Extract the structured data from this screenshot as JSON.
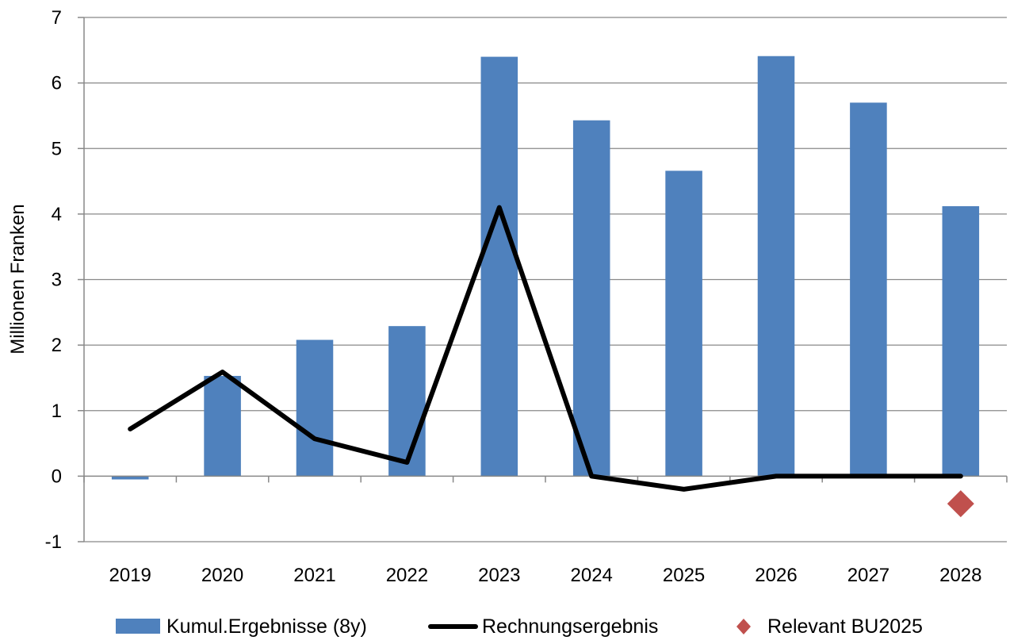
{
  "chart_data": {
    "type": "bar",
    "title": "",
    "xlabel": "",
    "ylabel": "Millionen Franken",
    "categories": [
      "2019",
      "2020",
      "2021",
      "2022",
      "2023",
      "2024",
      "2025",
      "2026",
      "2027",
      "2028"
    ],
    "ylim": [
      -1,
      7
    ],
    "yticks": [
      -1,
      0,
      1,
      2,
      3,
      4,
      5,
      6,
      7
    ],
    "grid": true,
    "legend_position": "bottom",
    "series": [
      {
        "name": "Kumul.Ergebnisse (8y)",
        "type": "bar",
        "color": "#4F81BD",
        "values": [
          -0.05,
          1.53,
          2.08,
          2.29,
          6.4,
          5.43,
          4.66,
          6.41,
          5.7,
          4.12
        ]
      },
      {
        "name": "Rechnungsergebnis",
        "type": "line",
        "color": "#000000",
        "values": [
          0.72,
          1.59,
          0.57,
          0.21,
          4.1,
          0.0,
          -0.2,
          0.0,
          0.0,
          0.0
        ]
      },
      {
        "name": "Relevant BU2025",
        "type": "scatter",
        "marker": "diamond",
        "color": "#C0504D",
        "values": [
          null,
          null,
          null,
          null,
          null,
          null,
          null,
          null,
          null,
          -0.42
        ]
      }
    ]
  }
}
